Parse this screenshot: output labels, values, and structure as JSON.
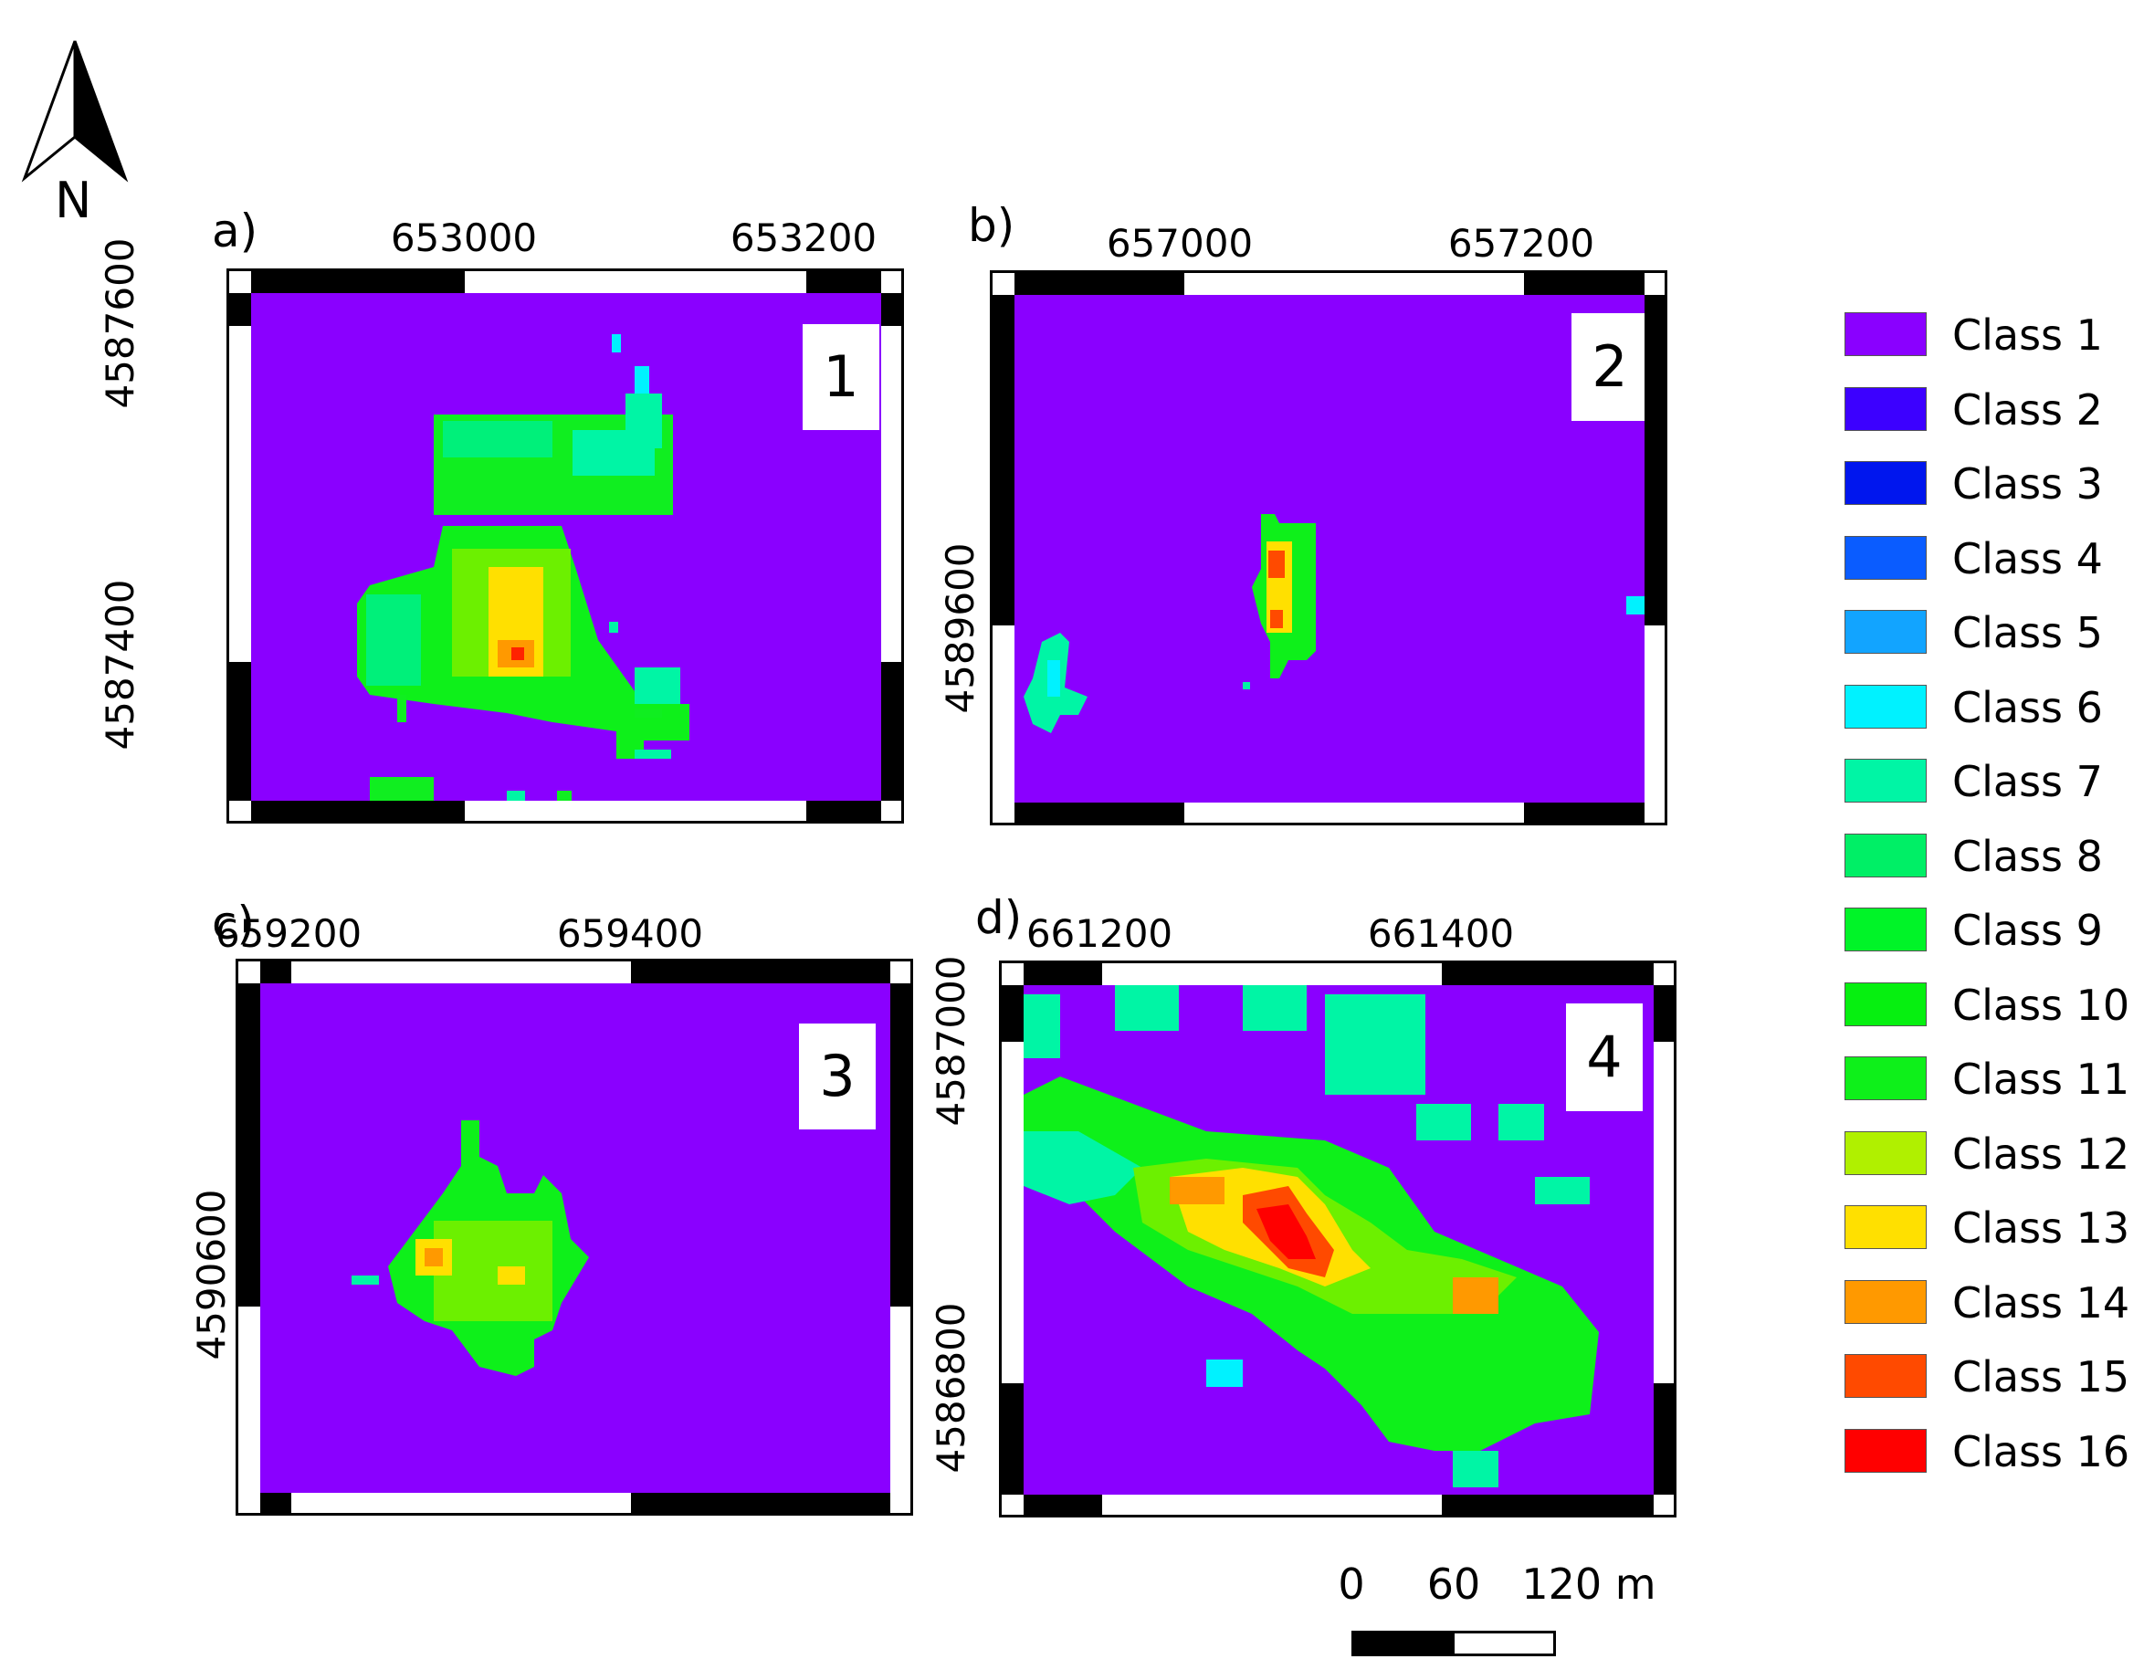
{
  "north_arrow": {
    "label": "N",
    "icon": "north-arrow-icon"
  },
  "panels": [
    {
      "letter": "a)",
      "number": "1",
      "x_ticks": [
        "653000",
        "653200"
      ],
      "y_ticks": [
        "4587600",
        "4587400"
      ]
    },
    {
      "letter": "b)",
      "number": "2",
      "x_ticks": [
        "657000",
        "657200"
      ],
      "y_ticks": [
        "4589600"
      ]
    },
    {
      "letter": "c)",
      "number": "3",
      "x_ticks": [
        "659200",
        "659400"
      ],
      "y_ticks": [
        "4590600"
      ]
    },
    {
      "letter": "d)",
      "number": "4",
      "x_ticks": [
        "661200",
        "661400"
      ],
      "y_ticks": [
        "4587000",
        "4586800"
      ]
    }
  ],
  "legend": [
    {
      "label": "Class 1",
      "color": "#8a00ff"
    },
    {
      "label": "Class 2",
      "color": "#3c00ff"
    },
    {
      "label": "Class 3",
      "color": "#0016ee"
    },
    {
      "label": "Class 4",
      "color": "#0a5cff"
    },
    {
      "label": "Class 5",
      "color": "#12a4ff"
    },
    {
      "label": "Class 6",
      "color": "#00f2ff"
    },
    {
      "label": "Class 7",
      "color": "#00f5a5"
    },
    {
      "label": "Class 8",
      "color": "#00ef66"
    },
    {
      "label": "Class 9",
      "color": "#00f428"
    },
    {
      "label": "Class 10",
      "color": "#06f010"
    },
    {
      "label": "Class 11",
      "color": "#0ef01a"
    },
    {
      "label": "Class 12",
      "color": "#b0f000"
    },
    {
      "label": "Class 13",
      "color": "#ffe000"
    },
    {
      "label": "Class 14",
      "color": "#ff9900"
    },
    {
      "label": "Class 15",
      "color": "#ff4a00"
    },
    {
      "label": "Class 16",
      "color": "#ff0000"
    }
  ],
  "scale_bar": {
    "labels": [
      "0",
      "60",
      "120 m"
    ]
  }
}
